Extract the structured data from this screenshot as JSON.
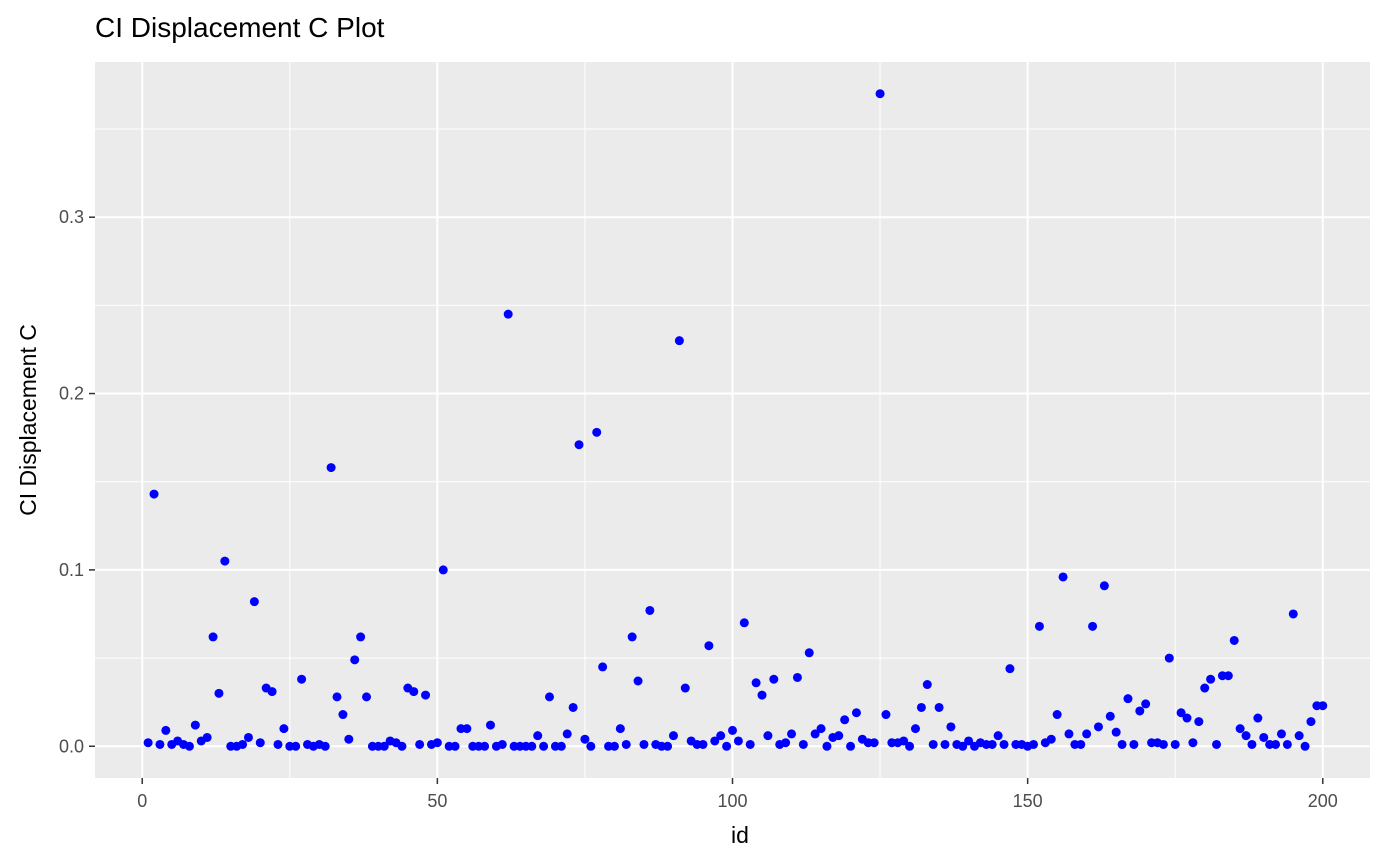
{
  "chart_data": {
    "type": "scatter",
    "title": "CI Displacement C Plot",
    "xlabel": "id",
    "ylabel": "CI Displacement C",
    "xlim": [
      -8,
      208
    ],
    "ylim": [
      -0.018,
      0.388
    ],
    "x_ticks": [
      0,
      50,
      100,
      150,
      200
    ],
    "x_tick_labels": [
      "0",
      "50",
      "100",
      "150",
      "200"
    ],
    "y_ticks": [
      0.0,
      0.1,
      0.2,
      0.3
    ],
    "y_tick_labels": [
      "0.0",
      "0.1",
      "0.2",
      "0.3"
    ],
    "grid": true,
    "background": "#ebebeb",
    "point_color": "#0000ff",
    "points": [
      [
        1,
        0.002
      ],
      [
        2,
        0.143
      ],
      [
        3,
        0.001
      ],
      [
        4,
        0.009
      ],
      [
        5,
        0.001
      ],
      [
        6,
        0.003
      ],
      [
        7,
        0.001
      ],
      [
        8,
        0.0
      ],
      [
        9,
        0.012
      ],
      [
        10,
        0.003
      ],
      [
        11,
        0.005
      ],
      [
        12,
        0.062
      ],
      [
        13,
        0.03
      ],
      [
        14,
        0.105
      ],
      [
        15,
        0.0
      ],
      [
        16,
        0.0
      ],
      [
        17,
        0.001
      ],
      [
        18,
        0.005
      ],
      [
        19,
        0.082
      ],
      [
        20,
        0.002
      ],
      [
        21,
        0.033
      ],
      [
        22,
        0.031
      ],
      [
        23,
        0.001
      ],
      [
        24,
        0.01
      ],
      [
        25,
        0.0
      ],
      [
        26,
        0.0
      ],
      [
        27,
        0.038
      ],
      [
        28,
        0.001
      ],
      [
        29,
        0.0
      ],
      [
        30,
        0.001
      ],
      [
        31,
        0.0
      ],
      [
        32,
        0.158
      ],
      [
        33,
        0.028
      ],
      [
        34,
        0.018
      ],
      [
        35,
        0.004
      ],
      [
        36,
        0.049
      ],
      [
        37,
        0.062
      ],
      [
        38,
        0.028
      ],
      [
        39,
        0.0
      ],
      [
        40,
        0.0
      ],
      [
        41,
        0.0
      ],
      [
        42,
        0.003
      ],
      [
        43,
        0.002
      ],
      [
        44,
        0.0
      ],
      [
        45,
        0.033
      ],
      [
        46,
        0.031
      ],
      [
        47,
        0.001
      ],
      [
        48,
        0.029
      ],
      [
        49,
        0.001
      ],
      [
        50,
        0.002
      ],
      [
        51,
        0.1
      ],
      [
        52,
        0.0
      ],
      [
        53,
        0.0
      ],
      [
        54,
        0.01
      ],
      [
        55,
        0.01
      ],
      [
        56,
        0.0
      ],
      [
        57,
        0.0
      ],
      [
        58,
        0.0
      ],
      [
        59,
        0.012
      ],
      [
        60,
        0.0
      ],
      [
        61,
        0.001
      ],
      [
        62,
        0.245
      ],
      [
        63,
        0.0
      ],
      [
        64,
        0.0
      ],
      [
        65,
        0.0
      ],
      [
        66,
        0.0
      ],
      [
        67,
        0.006
      ],
      [
        68,
        0.0
      ],
      [
        69,
        0.028
      ],
      [
        70,
        0.0
      ],
      [
        71,
        0.0
      ],
      [
        72,
        0.007
      ],
      [
        73,
        0.022
      ],
      [
        74,
        0.171
      ],
      [
        75,
        0.004
      ],
      [
        76,
        0.0
      ],
      [
        77,
        0.178
      ],
      [
        78,
        0.045
      ],
      [
        79,
        0.0
      ],
      [
        80,
        0.0
      ],
      [
        81,
        0.01
      ],
      [
        82,
        0.001
      ],
      [
        83,
        0.062
      ],
      [
        84,
        0.037
      ],
      [
        85,
        0.001
      ],
      [
        86,
        0.077
      ],
      [
        87,
        0.001
      ],
      [
        88,
        0.0
      ],
      [
        89,
        0.0
      ],
      [
        90,
        0.006
      ],
      [
        91,
        0.23
      ],
      [
        92,
        0.033
      ],
      [
        93,
        0.003
      ],
      [
        94,
        0.001
      ],
      [
        95,
        0.001
      ],
      [
        96,
        0.057
      ],
      [
        97,
        0.003
      ],
      [
        98,
        0.006
      ],
      [
        99,
        0.0
      ],
      [
        100,
        0.009
      ],
      [
        101,
        0.003
      ],
      [
        102,
        0.07
      ],
      [
        103,
        0.001
      ],
      [
        104,
        0.036
      ],
      [
        105,
        0.029
      ],
      [
        106,
        0.006
      ],
      [
        107,
        0.038
      ],
      [
        108,
        0.001
      ],
      [
        109,
        0.002
      ],
      [
        110,
        0.007
      ],
      [
        111,
        0.039
      ],
      [
        112,
        0.001
      ],
      [
        113,
        0.053
      ],
      [
        114,
        0.007
      ],
      [
        115,
        0.01
      ],
      [
        116,
        0.0
      ],
      [
        117,
        0.005
      ],
      [
        118,
        0.006
      ],
      [
        119,
        0.015
      ],
      [
        120,
        0.0
      ],
      [
        121,
        0.019
      ],
      [
        122,
        0.004
      ],
      [
        123,
        0.002
      ],
      [
        124,
        0.002
      ],
      [
        125,
        0.37
      ],
      [
        126,
        0.018
      ],
      [
        127,
        0.002
      ],
      [
        128,
        0.002
      ],
      [
        129,
        0.003
      ],
      [
        130,
        0.0
      ],
      [
        131,
        0.01
      ],
      [
        132,
        0.022
      ],
      [
        133,
        0.035
      ],
      [
        134,
        0.001
      ],
      [
        135,
        0.022
      ],
      [
        136,
        0.001
      ],
      [
        137,
        0.011
      ],
      [
        138,
        0.001
      ],
      [
        139,
        0.0
      ],
      [
        140,
        0.003
      ],
      [
        141,
        0.0
      ],
      [
        142,
        0.002
      ],
      [
        143,
        0.001
      ],
      [
        144,
        0.001
      ],
      [
        145,
        0.006
      ],
      [
        146,
        0.001
      ],
      [
        147,
        0.044
      ],
      [
        148,
        0.001
      ],
      [
        149,
        0.001
      ],
      [
        150,
        0.0
      ],
      [
        151,
        0.001
      ],
      [
        152,
        0.068
      ],
      [
        153,
        0.002
      ],
      [
        154,
        0.004
      ],
      [
        155,
        0.018
      ],
      [
        156,
        0.096
      ],
      [
        157,
        0.007
      ],
      [
        158,
        0.001
      ],
      [
        159,
        0.001
      ],
      [
        160,
        0.007
      ],
      [
        161,
        0.068
      ],
      [
        162,
        0.011
      ],
      [
        163,
        0.091
      ],
      [
        164,
        0.017
      ],
      [
        165,
        0.008
      ],
      [
        166,
        0.001
      ],
      [
        167,
        0.027
      ],
      [
        168,
        0.001
      ],
      [
        169,
        0.02
      ],
      [
        170,
        0.024
      ],
      [
        171,
        0.002
      ],
      [
        172,
        0.002
      ],
      [
        173,
        0.001
      ],
      [
        174,
        0.05
      ],
      [
        175,
        0.001
      ],
      [
        176,
        0.019
      ],
      [
        177,
        0.016
      ],
      [
        178,
        0.002
      ],
      [
        179,
        0.014
      ],
      [
        180,
        0.033
      ],
      [
        181,
        0.038
      ],
      [
        182,
        0.001
      ],
      [
        183,
        0.04
      ],
      [
        184,
        0.04
      ],
      [
        185,
        0.06
      ],
      [
        186,
        0.01
      ],
      [
        187,
        0.006
      ],
      [
        188,
        0.001
      ],
      [
        189,
        0.016
      ],
      [
        190,
        0.005
      ],
      [
        191,
        0.001
      ],
      [
        192,
        0.001
      ],
      [
        193,
        0.007
      ],
      [
        194,
        0.001
      ],
      [
        195,
        0.075
      ],
      [
        196,
        0.006
      ],
      [
        197,
        0.0
      ],
      [
        198,
        0.014
      ],
      [
        199,
        0.023
      ],
      [
        200,
        0.023
      ]
    ]
  }
}
